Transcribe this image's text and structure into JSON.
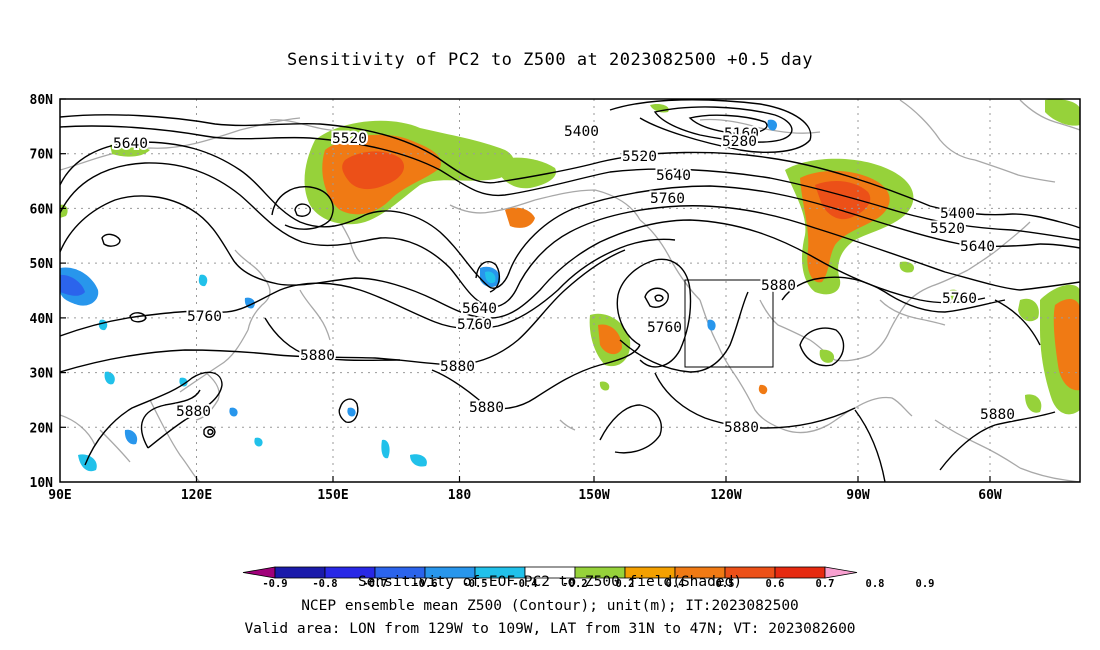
{
  "title": "Sensitivity of PC2 to Z500 at 2023082500 +0.5 day",
  "map": {
    "lat_labels": [
      "80N",
      "70N",
      "60N",
      "50N",
      "40N",
      "30N",
      "20N",
      "10N"
    ],
    "lon_labels": [
      "90E",
      "120E",
      "150E",
      "180",
      "150W",
      "120W",
      "90W",
      "60W"
    ],
    "contour_labels": [
      "5640",
      "5520",
      "5400",
      "5160",
      "5280",
      "5520",
      "5640",
      "5760",
      "5400",
      "5520",
      "5640",
      "5640",
      "5760",
      "5760",
      "5880",
      "5880",
      "5880",
      "5880",
      "5760",
      "5880",
      "5880",
      "5760",
      "5880"
    ],
    "valid_box": {
      "lon_from": "129W",
      "lon_to": "109W",
      "lat_from": "31N",
      "lat_to": "47N"
    }
  },
  "colorbar": {
    "labels": [
      "-0.9",
      "-0.8",
      "-0.7",
      "-0.6",
      "-0.5",
      "-0.4",
      "-0.2",
      "0.2",
      "0.4",
      "0.5",
      "0.6",
      "0.7",
      "0.8",
      "0.9"
    ],
    "colors": [
      "#a0007a",
      "#1a1aaa",
      "#2828e6",
      "#2b64ec",
      "#2896ec",
      "#21c1ea",
      "#ffffff",
      "#96d23a",
      "#f4a000",
      "#f07a14",
      "#ec5018",
      "#e62a10",
      "#f8a0d0"
    ]
  },
  "footer": {
    "line1": "Sensitivity of EOF PC2 to Z500 field(Shaded)",
    "line2": "NCEP ensemble mean Z500 (Contour); unit(m); IT:2023082500",
    "line3": "Valid area: LON from 129W to 109W, LAT from 31N to 47N; VT: 2023082600"
  }
}
